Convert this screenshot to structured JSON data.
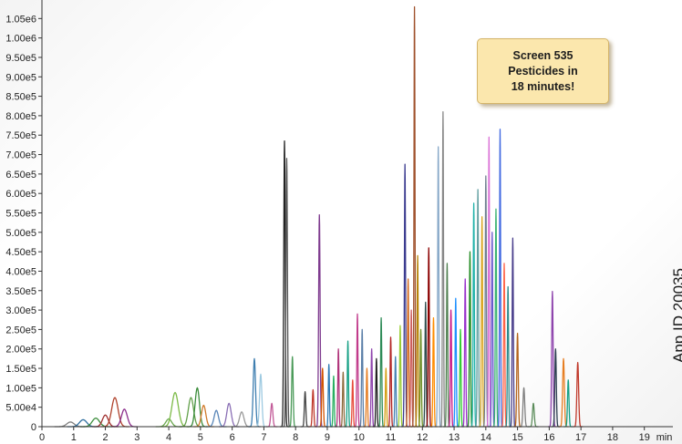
{
  "chart_data": {
    "type": "line",
    "title": "",
    "xlabel": "",
    "ylabel": "",
    "x_unit": "min",
    "xlim": [
      0,
      19.9
    ],
    "ylim": [
      0,
      1100000
    ],
    "grid": false,
    "y_ticks": [
      {
        "value": 0,
        "label": "0"
      },
      {
        "value": 50000,
        "label": "5.00e4"
      },
      {
        "value": 100000,
        "label": "1.00e5"
      },
      {
        "value": 150000,
        "label": "1.50e5"
      },
      {
        "value": 200000,
        "label": "2.00e5"
      },
      {
        "value": 250000,
        "label": "2.50e5"
      },
      {
        "value": 300000,
        "label": "3.00e5"
      },
      {
        "value": 350000,
        "label": "3.50e5"
      },
      {
        "value": 400000,
        "label": "4.00e5"
      },
      {
        "value": 450000,
        "label": "4.50e5"
      },
      {
        "value": 500000,
        "label": "5.00e5"
      },
      {
        "value": 550000,
        "label": "5.50e5"
      },
      {
        "value": 600000,
        "label": "6.00e5"
      },
      {
        "value": 650000,
        "label": "6.50e5"
      },
      {
        "value": 700000,
        "label": "7.00e5"
      },
      {
        "value": 750000,
        "label": "7.50e5"
      },
      {
        "value": 800000,
        "label": "8.00e5"
      },
      {
        "value": 850000,
        "label": "8.50e5"
      },
      {
        "value": 900000,
        "label": "9.00e5"
      },
      {
        "value": 950000,
        "label": "9.50e5"
      },
      {
        "value": 1000000,
        "label": "1.00e6"
      },
      {
        "value": 1050000,
        "label": "1.05e6"
      }
    ],
    "x_ticks": [
      {
        "value": 0,
        "label": "0"
      },
      {
        "value": 1,
        "label": "1"
      },
      {
        "value": 2,
        "label": "2"
      },
      {
        "value": 3,
        "label": "3"
      },
      {
        "value": 4,
        "label": "4"
      },
      {
        "value": 5,
        "label": "5"
      },
      {
        "value": 6,
        "label": "6"
      },
      {
        "value": 7,
        "label": "7"
      },
      {
        "value": 8,
        "label": "8"
      },
      {
        "value": 9,
        "label": "9"
      },
      {
        "value": 10,
        "label": "10"
      },
      {
        "value": 11,
        "label": "11"
      },
      {
        "value": 12,
        "label": "12"
      },
      {
        "value": 13,
        "label": "13"
      },
      {
        "value": 14,
        "label": "14"
      },
      {
        "value": 15,
        "label": "15"
      },
      {
        "value": 16,
        "label": "16"
      },
      {
        "value": 17,
        "label": "17"
      },
      {
        "value": 18,
        "label": "18"
      },
      {
        "value": 19,
        "label": "19"
      }
    ],
    "peaks": [
      {
        "t": 0.9,
        "h": 12000,
        "w": 0.25,
        "color": "#7f7f7f"
      },
      {
        "t": 1.3,
        "h": 18000,
        "w": 0.25,
        "color": "#2e6e9e"
      },
      {
        "t": 1.7,
        "h": 22000,
        "w": 0.25,
        "color": "#3c8d3c"
      },
      {
        "t": 2.0,
        "h": 30000,
        "w": 0.2,
        "color": "#a03030"
      },
      {
        "t": 2.3,
        "h": 75000,
        "w": 0.22,
        "color": "#b0422c"
      },
      {
        "t": 2.6,
        "h": 45000,
        "w": 0.2,
        "color": "#8c2f8c"
      },
      {
        "t": 4.0,
        "h": 20000,
        "w": 0.2,
        "color": "#6aa84f"
      },
      {
        "t": 4.2,
        "h": 88000,
        "w": 0.22,
        "color": "#7dbb48"
      },
      {
        "t": 4.7,
        "h": 75000,
        "w": 0.18,
        "color": "#62a04a"
      },
      {
        "t": 4.9,
        "h": 100000,
        "w": 0.15,
        "color": "#3c8d3c"
      },
      {
        "t": 5.1,
        "h": 55000,
        "w": 0.15,
        "color": "#d07a2b"
      },
      {
        "t": 5.5,
        "h": 42000,
        "w": 0.15,
        "color": "#5a86b8"
      },
      {
        "t": 5.9,
        "h": 60000,
        "w": 0.15,
        "color": "#8a6fb5"
      },
      {
        "t": 6.3,
        "h": 38000,
        "w": 0.15,
        "color": "#999999"
      },
      {
        "t": 6.7,
        "h": 175000,
        "w": 0.08,
        "color": "#3f7fb0"
      },
      {
        "t": 6.9,
        "h": 135000,
        "w": 0.08,
        "color": "#9ecae1"
      },
      {
        "t": 7.25,
        "h": 60000,
        "w": 0.07,
        "color": "#c25a98"
      },
      {
        "t": 7.65,
        "h": 735000,
        "w": 0.05,
        "color": "#222222"
      },
      {
        "t": 7.72,
        "h": 690000,
        "w": 0.05,
        "color": "#555555"
      },
      {
        "t": 7.9,
        "h": 180000,
        "w": 0.05,
        "color": "#4a9a58"
      },
      {
        "t": 8.3,
        "h": 90000,
        "w": 0.05,
        "color": "#444444"
      },
      {
        "t": 8.55,
        "h": 95000,
        "w": 0.05,
        "color": "#c0392b"
      },
      {
        "t": 8.75,
        "h": 545000,
        "w": 0.05,
        "color": "#7e3a8e"
      },
      {
        "t": 8.85,
        "h": 150000,
        "w": 0.05,
        "color": "#d35400"
      },
      {
        "t": 9.05,
        "h": 160000,
        "w": 0.04,
        "color": "#2c7bb6"
      },
      {
        "t": 9.2,
        "h": 130000,
        "w": 0.04,
        "color": "#27ae60"
      },
      {
        "t": 9.35,
        "h": 200000,
        "w": 0.04,
        "color": "#b0337a"
      },
      {
        "t": 9.5,
        "h": 140000,
        "w": 0.04,
        "color": "#8e6b3e"
      },
      {
        "t": 9.65,
        "h": 220000,
        "w": 0.04,
        "color": "#16a085"
      },
      {
        "t": 9.8,
        "h": 120000,
        "w": 0.04,
        "color": "#e74c3c"
      },
      {
        "t": 9.95,
        "h": 290000,
        "w": 0.04,
        "color": "#c13b8b"
      },
      {
        "t": 10.1,
        "h": 250000,
        "w": 0.04,
        "color": "#5b7fa8"
      },
      {
        "t": 10.25,
        "h": 150000,
        "w": 0.04,
        "color": "#e67e22"
      },
      {
        "t": 10.4,
        "h": 200000,
        "w": 0.04,
        "color": "#8e44ad"
      },
      {
        "t": 10.55,
        "h": 175000,
        "w": 0.04,
        "color": "#1f1f1f"
      },
      {
        "t": 10.7,
        "h": 280000,
        "w": 0.04,
        "color": "#2e8b57"
      },
      {
        "t": 10.85,
        "h": 150000,
        "w": 0.04,
        "color": "#d4a017"
      },
      {
        "t": 11.0,
        "h": 230000,
        "w": 0.04,
        "color": "#b22222"
      },
      {
        "t": 11.15,
        "h": 180000,
        "w": 0.04,
        "color": "#4682b4"
      },
      {
        "t": 11.3,
        "h": 260000,
        "w": 0.04,
        "color": "#9acd32"
      },
      {
        "t": 11.45,
        "h": 675000,
        "w": 0.04,
        "color": "#3b3b8f"
      },
      {
        "t": 11.55,
        "h": 380000,
        "w": 0.04,
        "color": "#d2691e"
      },
      {
        "t": 11.65,
        "h": 300000,
        "w": 0.04,
        "color": "#cd5c5c"
      },
      {
        "t": 11.75,
        "h": 1080000,
        "w": 0.035,
        "color": "#a0522d"
      },
      {
        "t": 11.85,
        "h": 440000,
        "w": 0.04,
        "color": "#b8860b"
      },
      {
        "t": 11.95,
        "h": 250000,
        "w": 0.04,
        "color": "#6b8e23"
      },
      {
        "t": 12.1,
        "h": 320000,
        "w": 0.04,
        "color": "#2f4f4f"
      },
      {
        "t": 12.2,
        "h": 460000,
        "w": 0.04,
        "color": "#8b0000"
      },
      {
        "t": 12.35,
        "h": 280000,
        "w": 0.04,
        "color": "#ff8c00"
      },
      {
        "t": 12.5,
        "h": 720000,
        "w": 0.04,
        "color": "#87a8c8"
      },
      {
        "t": 12.65,
        "h": 810000,
        "w": 0.035,
        "color": "#888888"
      },
      {
        "t": 12.78,
        "h": 420000,
        "w": 0.04,
        "color": "#4f7f4f"
      },
      {
        "t": 12.9,
        "h": 300000,
        "w": 0.04,
        "color": "#c71585"
      },
      {
        "t": 13.05,
        "h": 330000,
        "w": 0.04,
        "color": "#1e90ff"
      },
      {
        "t": 13.2,
        "h": 250000,
        "w": 0.04,
        "color": "#32cd32"
      },
      {
        "t": 13.35,
        "h": 380000,
        "w": 0.04,
        "color": "#9932cc"
      },
      {
        "t": 13.5,
        "h": 450000,
        "w": 0.04,
        "color": "#228b22"
      },
      {
        "t": 13.62,
        "h": 575000,
        "w": 0.04,
        "color": "#20b2aa"
      },
      {
        "t": 13.75,
        "h": 610000,
        "w": 0.04,
        "color": "#5f9ea0"
      },
      {
        "t": 13.88,
        "h": 540000,
        "w": 0.04,
        "color": "#daa520"
      },
      {
        "t": 14.0,
        "h": 645000,
        "w": 0.04,
        "color": "#708090"
      },
      {
        "t": 14.1,
        "h": 745000,
        "w": 0.035,
        "color": "#da70d6"
      },
      {
        "t": 14.2,
        "h": 500000,
        "w": 0.04,
        "color": "#6a5acd"
      },
      {
        "t": 14.32,
        "h": 560000,
        "w": 0.04,
        "color": "#3cb371"
      },
      {
        "t": 14.45,
        "h": 765000,
        "w": 0.035,
        "color": "#4169e1"
      },
      {
        "t": 14.58,
        "h": 420000,
        "w": 0.04,
        "color": "#ff6347"
      },
      {
        "t": 14.7,
        "h": 360000,
        "w": 0.04,
        "color": "#2e8b8b"
      },
      {
        "t": 14.85,
        "h": 485000,
        "w": 0.04,
        "color": "#483d8b"
      },
      {
        "t": 15.0,
        "h": 240000,
        "w": 0.05,
        "color": "#b5651d"
      },
      {
        "t": 15.2,
        "h": 100000,
        "w": 0.06,
        "color": "#7f7f7f"
      },
      {
        "t": 15.5,
        "h": 60000,
        "w": 0.06,
        "color": "#5b8c5a"
      },
      {
        "t": 16.1,
        "h": 348000,
        "w": 0.05,
        "color": "#8e44ad"
      },
      {
        "t": 16.2,
        "h": 200000,
        "w": 0.05,
        "color": "#2c3e50"
      },
      {
        "t": 16.45,
        "h": 175000,
        "w": 0.06,
        "color": "#e67e22"
      },
      {
        "t": 16.6,
        "h": 120000,
        "w": 0.05,
        "color": "#16a085"
      },
      {
        "t": 16.9,
        "h": 165000,
        "w": 0.06,
        "color": "#c0392b"
      }
    ]
  },
  "callout": {
    "line1": "Screen 535",
    "line2": "Pesticides in",
    "line3": "18 minutes!"
  },
  "app_id": "App ID 20035",
  "x_axis_unit_label": "min"
}
